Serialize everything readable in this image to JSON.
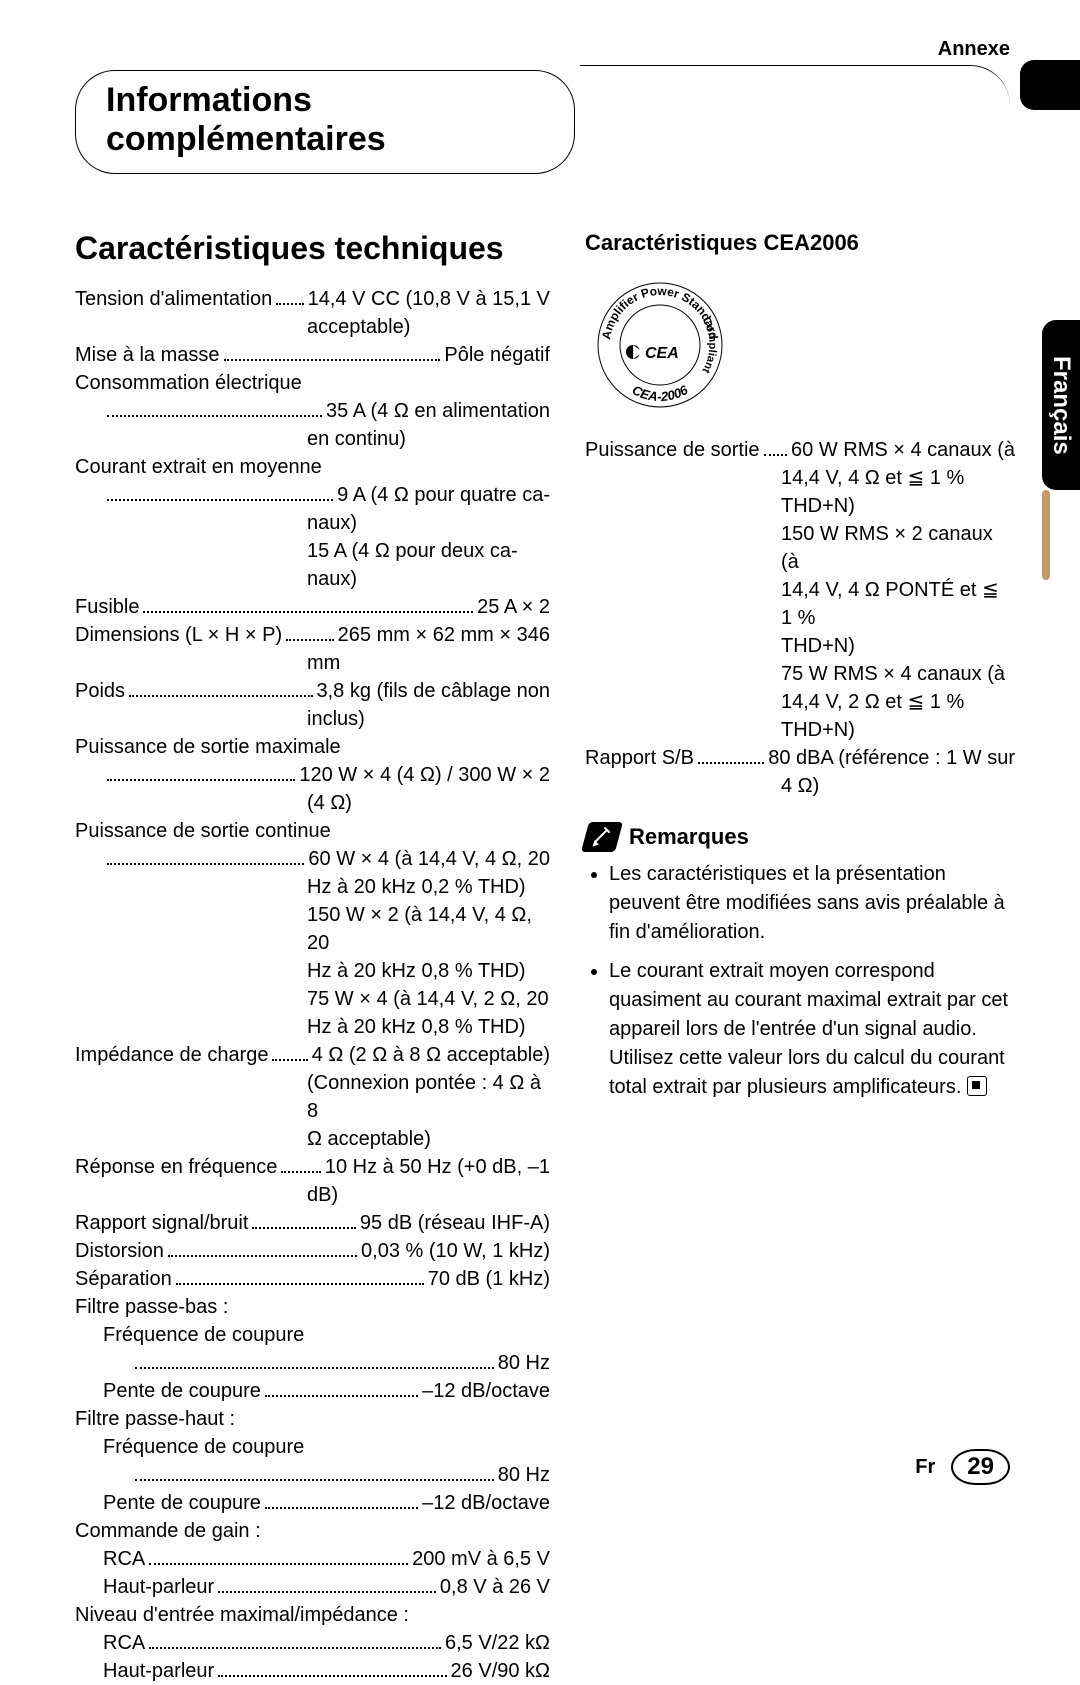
{
  "header": {
    "annexe": "Annexe",
    "title_line1": "Informations",
    "title_line2": "complémentaires"
  },
  "lang_tab": "Français",
  "left": {
    "section_title": "Caractéristiques techniques",
    "specs": [
      {
        "label": "Tension d'alimentation",
        "value_first": "14,4 V CC (10,8 V à 15,1 V",
        "cont": [
          "acceptable)"
        ]
      },
      {
        "label": "Mise à la masse",
        "value_first": "Pôle négatif"
      },
      {
        "label": "Consommation électrique"
      },
      {
        "label": "",
        "value_first": "35 A (4 Ω en alimentation",
        "indent": 1,
        "cont": [
          "en continu)"
        ]
      },
      {
        "label": "Courant extrait en moyenne"
      },
      {
        "label": "",
        "value_first": "9 A (4 Ω pour quatre ca-",
        "indent": 1,
        "cont": [
          "naux)",
          "15 A (4 Ω pour deux ca-",
          "naux)"
        ]
      },
      {
        "label": "Fusible",
        "value_first": "25 A × 2"
      },
      {
        "label": "Dimensions (L × H × P)",
        "value_first": "265 mm × 62 mm × 346",
        "cont": [
          "mm"
        ]
      },
      {
        "label": "Poids",
        "value_first": "3,8 kg (fils de câblage non",
        "cont": [
          "inclus)"
        ]
      },
      {
        "label": "Puissance de sortie maximale"
      },
      {
        "label": "",
        "value_first": "120 W × 4 (4 Ω) / 300 W × 2",
        "indent": 1,
        "cont": [
          "(4 Ω)"
        ]
      },
      {
        "label": "Puissance de sortie continue"
      },
      {
        "label": "",
        "value_first": "60 W × 4 (à 14,4 V, 4 Ω, 20",
        "indent": 1,
        "cont": [
          "Hz à 20 kHz 0,2 % THD)",
          "150 W × 2 (à 14,4 V, 4 Ω, 20",
          "Hz à 20 kHz 0,8 % THD)",
          "75 W × 4 (à 14,4 V, 2 Ω, 20",
          "Hz à 20 kHz 0,8 % THD)"
        ]
      },
      {
        "label": "Impédance de charge",
        "value_first": "4 Ω (2 Ω à 8 Ω acceptable)",
        "cont": [
          "(Connexion pontée : 4 Ω à 8",
          "Ω acceptable)"
        ]
      },
      {
        "label": "Réponse en fréquence",
        "value_first": "10 Hz à 50 Hz (+0 dB, –1",
        "cont": [
          "dB)"
        ]
      },
      {
        "label": "Rapport signal/bruit",
        "value_first": "95 dB (réseau IHF-A)"
      },
      {
        "label": "Distorsion",
        "value_first": "0,03 % (10 W, 1 kHz)"
      },
      {
        "label": "Séparation",
        "value_first": "70 dB (1 kHz)"
      },
      {
        "label": "Filtre passe-bas :"
      },
      {
        "label": "Fréquence de coupure",
        "indent": 1
      },
      {
        "label": "",
        "value_first": "80 Hz",
        "indent": 2
      },
      {
        "label": "Pente de coupure",
        "value_first": "–12 dB/octave",
        "indent": 1
      },
      {
        "label": "Filtre passe-haut :"
      },
      {
        "label": "Fréquence de coupure",
        "indent": 1
      },
      {
        "label": "",
        "value_first": "80 Hz",
        "indent": 2
      },
      {
        "label": "Pente de coupure",
        "value_first": "–12 dB/octave",
        "indent": 1
      },
      {
        "label": "Commande de gain :"
      },
      {
        "label": "RCA",
        "value_first": "200 mV à 6,5 V",
        "indent": 1
      },
      {
        "label": "Haut-parleur",
        "value_first": "0,8 V à 26 V",
        "indent": 1
      },
      {
        "label": "Niveau d'entrée maximal/impédance :"
      },
      {
        "label": "RCA",
        "value_first": "6,5 V/22 kΩ",
        "indent": 1
      },
      {
        "label": "Haut-parleur",
        "value_first": "26 V/90 kΩ",
        "indent": 1
      }
    ]
  },
  "right": {
    "cea_title": "Caractéristiques CEA2006",
    "logo": {
      "top_text": "Amplifier Power Standard",
      "bottom_text": "CEA-2006",
      "side_text": "Compliant",
      "cea": "CEA"
    },
    "specs": [
      {
        "label": "Puissance de sortie",
        "value_first": "60 W RMS × 4 canaux (à",
        "cont": [
          "14,4 V, 4 Ω et ≦ 1 % THD+N)",
          "150 W RMS × 2 canaux (à",
          "14,4 V, 4 Ω PONTÉ et ≦ 1 %",
          "THD+N)",
          "75 W RMS × 4 canaux (à",
          "14,4 V, 2 Ω et ≦ 1 % THD+N)"
        ]
      },
      {
        "label": "Rapport S/B",
        "value_first": "80 dBA (référence : 1 W sur",
        "cont": [
          "4 Ω)"
        ]
      }
    ],
    "remarques_title": "Remarques",
    "notes": [
      "Les caractéristiques et la présentation peuvent être modifiées sans avis préalable à fin d'amélioration.",
      "Le courant extrait moyen correspond quasiment au courant maximal extrait par cet appareil lors de l'entrée d'un signal audio. Utilisez cette valeur lors du calcul du courant total extrait par plusieurs amplificateurs."
    ]
  },
  "footer": {
    "lang": "Fr",
    "page": "29"
  }
}
